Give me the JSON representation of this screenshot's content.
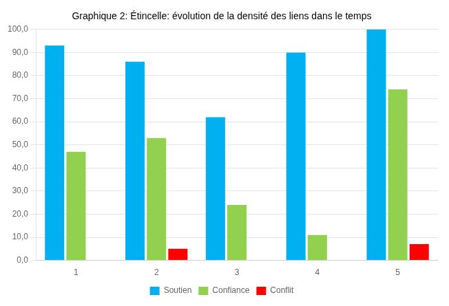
{
  "chart_data": {
    "type": "bar",
    "title": "Graphique 2: Étincelle: évolution de la densité des liens dans le temps",
    "categories": [
      "1",
      "2",
      "3",
      "4",
      "5"
    ],
    "series": [
      {
        "name": "Soutien",
        "color": "#00B0F0",
        "values": [
          93,
          86,
          62,
          90,
          100
        ]
      },
      {
        "name": "Confiance",
        "color": "#92D050",
        "values": [
          47,
          53,
          24,
          11,
          74
        ]
      },
      {
        "name": "Conflit",
        "color": "#FF0000",
        "values": [
          0,
          5,
          0,
          0,
          7
        ]
      }
    ],
    "ylim": [
      0,
      100
    ],
    "yticks": [
      {
        "value": 0,
        "label": "0,0"
      },
      {
        "value": 10,
        "label": "10,0"
      },
      {
        "value": 20,
        "label": "20,0"
      },
      {
        "value": 30,
        "label": "30,0"
      },
      {
        "value": 40,
        "label": "40,0"
      },
      {
        "value": 50,
        "label": "50,0"
      },
      {
        "value": 60,
        "label": "60,0"
      },
      {
        "value": 70,
        "label": "70,0"
      },
      {
        "value": 80,
        "label": "80,0"
      },
      {
        "value": 90,
        "label": "90,0"
      },
      {
        "value": 100,
        "label": "100,0"
      }
    ],
    "grid": true,
    "legend": "bottom"
  }
}
